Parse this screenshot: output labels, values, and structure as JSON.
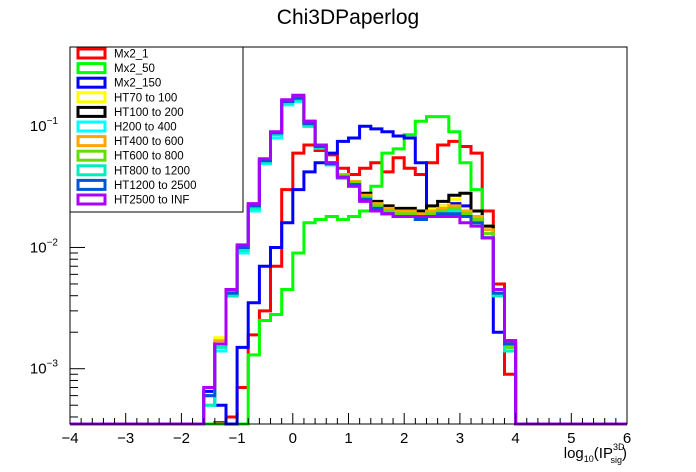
{
  "chart_data": {
    "type": "line",
    "title": "Chi3DPaperlog",
    "xlabel": {
      "base": "log",
      "base_sub": "10",
      "open": "(IP",
      "sup": "3D",
      "sub": "sig",
      "close": ")"
    },
    "ylabel": "",
    "xlim": [
      -4,
      6
    ],
    "ylim": [
      0.00035,
      0.45
    ],
    "yscale": "log",
    "grid": false,
    "legend_placement": "top-left",
    "x_ticks": [
      -4,
      -3,
      -2,
      -1,
      0,
      1,
      2,
      3,
      4,
      5,
      6
    ],
    "x_tick_labels": [
      "−4",
      "−3",
      "−2",
      "−1",
      "0",
      "1",
      "2",
      "3",
      "4",
      "5",
      "6"
    ],
    "y_tick_labels": [
      {
        "value": 0.1,
        "base": "10",
        "exp": "−1"
      },
      {
        "value": 0.01,
        "base": "10",
        "exp": "−2"
      },
      {
        "value": 0.001,
        "base": "10",
        "exp": "−3"
      }
    ],
    "bin_edges": [
      -4.0,
      -3.8,
      -3.6,
      -3.4,
      -3.2,
      -3.0,
      -2.8,
      -2.6,
      -2.4,
      -2.2,
      -2.0,
      -1.8,
      -1.6,
      -1.4,
      -1.2,
      -1.0,
      -0.8,
      -0.6,
      -0.4,
      -0.2,
      0.0,
      0.2,
      0.4,
      0.6,
      0.8,
      1.0,
      1.2,
      1.4,
      1.6,
      1.8,
      2.0,
      2.2,
      2.4,
      2.6,
      2.8,
      3.0,
      3.2,
      3.4,
      3.6,
      3.8,
      4.0,
      4.2,
      4.4,
      4.6,
      4.8,
      5.0,
      5.2,
      5.4,
      5.6,
      5.8,
      6.0
    ],
    "series": [
      {
        "name": "Mx2_1",
        "color": "#ff0000",
        "values": [
          0,
          0,
          0,
          0,
          0,
          0,
          0,
          0,
          0,
          0,
          0,
          0,
          0,
          0.00036,
          0.0004,
          0.0007,
          0.0019,
          0.003,
          0.007,
          0.03,
          0.06,
          0.07,
          0.063,
          0.058,
          0.045,
          0.04,
          0.045,
          0.05,
          0.042,
          0.055,
          0.045,
          0.04,
          0.05,
          0.07,
          0.075,
          0.068,
          0.06,
          0.02,
          0.005,
          0.0009,
          0,
          0,
          0,
          0,
          0,
          0,
          0,
          0,
          0,
          0
        ]
      },
      {
        "name": "Mx2_50",
        "color": "#00ff00",
        "values": [
          0,
          0,
          0,
          0,
          0,
          0,
          0,
          0,
          0,
          0,
          0,
          0,
          0,
          0,
          0,
          0.0003,
          0.0013,
          0.0025,
          0.0028,
          0.0045,
          0.009,
          0.016,
          0.017,
          0.018,
          0.017,
          0.018,
          0.02,
          0.032,
          0.06,
          0.065,
          0.085,
          0.11,
          0.12,
          0.12,
          0.09,
          0.05,
          0.03,
          0.012,
          0.004,
          0.0015,
          0,
          0,
          0,
          0,
          0,
          0,
          0,
          0,
          0,
          0
        ]
      },
      {
        "name": "Mx2_150",
        "color": "#0000ff",
        "values": [
          0,
          0,
          0,
          0,
          0,
          0,
          0,
          0,
          0,
          0,
          0,
          0,
          0.00065,
          0.0005,
          0.0003,
          0.0015,
          0.0035,
          0.007,
          0.01,
          0.016,
          0.03,
          0.042,
          0.05,
          0.06,
          0.075,
          0.08,
          0.1,
          0.095,
          0.09,
          0.083,
          0.08,
          0.05,
          0.02,
          0.022,
          0.023,
          0.022,
          0.02,
          0.012,
          0.002,
          0.0015,
          0,
          0,
          0,
          0,
          0,
          0,
          0,
          0,
          0,
          0
        ]
      },
      {
        "name": "HT70 to 100",
        "color": "#ffff00",
        "values": [
          0,
          0,
          0,
          0,
          0,
          0,
          0,
          0,
          0,
          0,
          0,
          0,
          0.0006,
          0.0018,
          0.0045,
          0.01,
          0.022,
          0.052,
          0.088,
          0.16,
          0.18,
          0.11,
          0.07,
          0.05,
          0.04,
          0.035,
          0.027,
          0.024,
          0.022,
          0.021,
          0.021,
          0.02,
          0.021,
          0.022,
          0.025,
          0.028,
          0.02,
          0.015,
          0.0045,
          0.0017,
          0,
          0,
          0,
          0,
          0,
          0,
          0,
          0,
          0,
          0
        ]
      },
      {
        "name": "HT100 to 200",
        "color": "#000000",
        "values": [
          0,
          0,
          0,
          0,
          0,
          0,
          0,
          0,
          0,
          0,
          0,
          0,
          0.0006,
          0.0016,
          0.004,
          0.01,
          0.022,
          0.052,
          0.088,
          0.16,
          0.17,
          0.11,
          0.07,
          0.05,
          0.04,
          0.035,
          0.028,
          0.024,
          0.022,
          0.021,
          0.021,
          0.02,
          0.022,
          0.024,
          0.027,
          0.028,
          0.02,
          0.015,
          0.0045,
          0.0017,
          0,
          0,
          0,
          0,
          0,
          0,
          0,
          0,
          0,
          0
        ]
      },
      {
        "name": "H200 to 400",
        "color": "#00ffff",
        "values": [
          0,
          0,
          0,
          0,
          0,
          0,
          0,
          0,
          0,
          0,
          0,
          0,
          0.0005,
          0.0014,
          0.004,
          0.009,
          0.02,
          0.049,
          0.08,
          0.15,
          0.16,
          0.1,
          0.066,
          0.048,
          0.037,
          0.032,
          0.025,
          0.021,
          0.019,
          0.018,
          0.018,
          0.017,
          0.018,
          0.019,
          0.02,
          0.02,
          0.017,
          0.013,
          0.004,
          0.0015,
          0,
          0,
          0,
          0,
          0,
          0,
          0,
          0,
          0,
          0
        ]
      },
      {
        "name": "HT400 to 600",
        "color": "#ffa500",
        "values": [
          0,
          0,
          0,
          0,
          0,
          0,
          0,
          0,
          0,
          0,
          0,
          0,
          0.0006,
          0.0017,
          0.0044,
          0.01,
          0.022,
          0.053,
          0.088,
          0.16,
          0.17,
          0.11,
          0.07,
          0.05,
          0.04,
          0.035,
          0.027,
          0.023,
          0.021,
          0.02,
          0.02,
          0.019,
          0.02,
          0.021,
          0.022,
          0.02,
          0.018,
          0.014,
          0.0045,
          0.0016,
          0,
          0,
          0,
          0,
          0,
          0,
          0,
          0,
          0,
          0
        ]
      },
      {
        "name": "HT600 to 800",
        "color": "#66dd00",
        "values": [
          0,
          0,
          0,
          0,
          0,
          0,
          0,
          0,
          0,
          0,
          0,
          0,
          0.0006,
          0.0016,
          0.0042,
          0.01,
          0.021,
          0.052,
          0.087,
          0.16,
          0.17,
          0.105,
          0.068,
          0.049,
          0.039,
          0.034,
          0.026,
          0.022,
          0.02,
          0.019,
          0.019,
          0.018,
          0.019,
          0.02,
          0.021,
          0.019,
          0.017,
          0.013,
          0.0042,
          0.0015,
          0,
          0,
          0,
          0,
          0,
          0,
          0,
          0,
          0,
          0
        ]
      },
      {
        "name": "HT800 to 1200",
        "color": "#00eebb",
        "values": [
          0,
          0,
          0,
          0,
          0,
          0,
          0,
          0,
          0,
          0,
          0,
          0,
          0.0005,
          0.0015,
          0.004,
          0.0095,
          0.021,
          0.05,
          0.085,
          0.155,
          0.165,
          0.1,
          0.066,
          0.048,
          0.038,
          0.033,
          0.025,
          0.021,
          0.019,
          0.018,
          0.018,
          0.017,
          0.018,
          0.019,
          0.02,
          0.018,
          0.016,
          0.012,
          0.004,
          0.0014,
          0,
          0,
          0,
          0,
          0,
          0,
          0,
          0,
          0,
          0
        ]
      },
      {
        "name": "HT1200 to 2500",
        "color": "#0055dd",
        "values": [
          0,
          0,
          0,
          0,
          0,
          0,
          0,
          0,
          0,
          0,
          0,
          0,
          0.0006,
          0.0016,
          0.0042,
          0.01,
          0.022,
          0.052,
          0.088,
          0.16,
          0.17,
          0.105,
          0.068,
          0.049,
          0.038,
          0.033,
          0.025,
          0.021,
          0.019,
          0.018,
          0.018,
          0.017,
          0.018,
          0.019,
          0.019,
          0.018,
          0.016,
          0.012,
          0.0042,
          0.0016,
          0,
          0,
          0,
          0,
          0,
          0,
          0,
          0,
          0,
          0
        ]
      },
      {
        "name": "HT2500 to INF",
        "color": "#aa00ff",
        "values": [
          0,
          0,
          0,
          0,
          0,
          0,
          0,
          0,
          0,
          0,
          0,
          0,
          0.0007,
          0.0016,
          0.0045,
          0.0105,
          0.023,
          0.054,
          0.09,
          0.165,
          0.18,
          0.11,
          0.07,
          0.05,
          0.038,
          0.032,
          0.024,
          0.02,
          0.019,
          0.018,
          0.018,
          0.018,
          0.018,
          0.018,
          0.018,
          0.016,
          0.015,
          0.012,
          0.0045,
          0.0017,
          0,
          0,
          0,
          0,
          0,
          0,
          0,
          0,
          0,
          0
        ]
      }
    ]
  }
}
